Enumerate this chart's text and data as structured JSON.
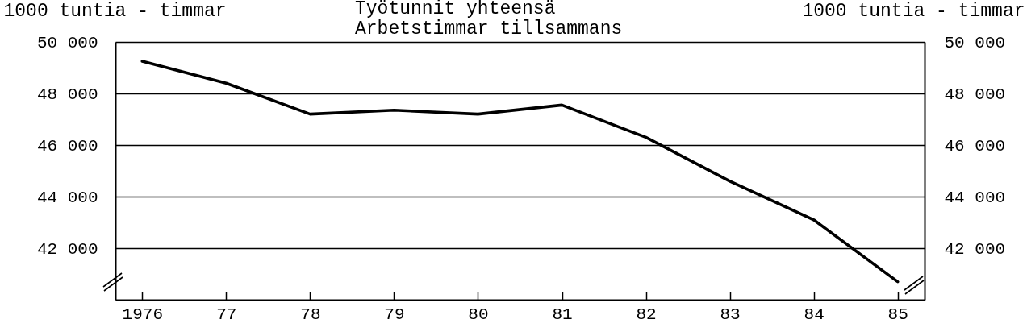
{
  "chart_data": {
    "type": "line",
    "title": "Työtunnit yhteensä",
    "subtitle": "Arbetstimmar tillsammans",
    "ylabel": "1000 tuntia - timmar",
    "y2label": "1000 tuntia - timmar",
    "categories": [
      "1976",
      "77",
      "78",
      "79",
      "80",
      "81",
      "82",
      "83",
      "84",
      "85"
    ],
    "series": [
      {
        "color": "#000000",
        "values": [
          49250,
          48400,
          47200,
          47350,
          47200,
          47550,
          46300,
          44600,
          43100,
          40700
        ]
      }
    ],
    "ylim": [
      40000,
      50000
    ],
    "yticks": [
      {
        "value": 42000,
        "label": "42 000"
      },
      {
        "value": 44000,
        "label": "44 000"
      },
      {
        "value": 46000,
        "label": "46 000"
      },
      {
        "value": 48000,
        "label": "48 000"
      },
      {
        "value": 50000,
        "label": "50 000"
      }
    ],
    "y2lim": [
      40000,
      50000
    ],
    "y2ticks": [
      {
        "value": 42000,
        "label": "42 000"
      },
      {
        "value": 44000,
        "label": "44 000"
      },
      {
        "value": 46000,
        "label": "46 000"
      },
      {
        "value": 48000,
        "label": "48 000"
      },
      {
        "value": 50000,
        "label": "50 000"
      }
    ],
    "grid": "y",
    "line_style": "solid"
  }
}
